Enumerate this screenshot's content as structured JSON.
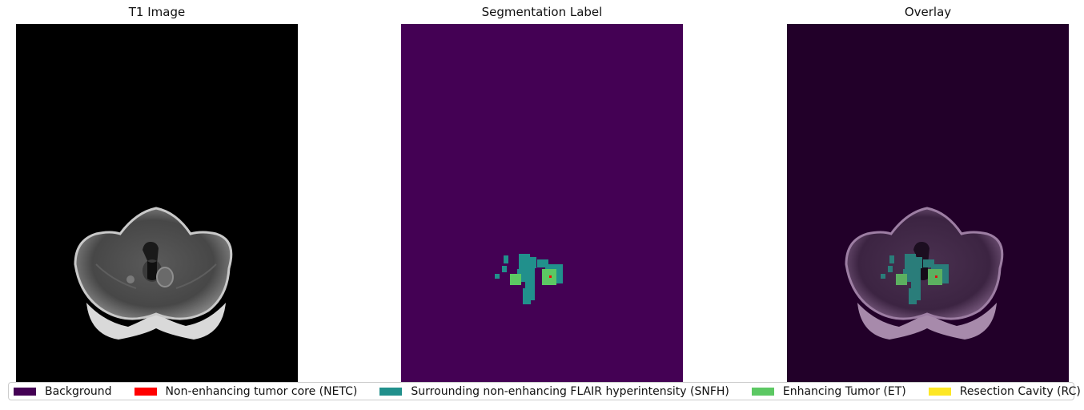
{
  "panels": [
    {
      "title": "T1 Image"
    },
    {
      "title": "Segmentation Label"
    },
    {
      "title": "Overlay"
    }
  ],
  "legend": [
    {
      "label": "Background",
      "color": "#440154"
    },
    {
      "label": "Non-enhancing tumor core (NETC)",
      "color": "#ff0000"
    },
    {
      "label": "Surrounding non-enhancing FLAIR hyperintensity (SNFH)",
      "color": "#21908c"
    },
    {
      "label": "Enhancing Tumor (ET)",
      "color": "#5cc863"
    },
    {
      "label": "Resection Cavity (RC)",
      "color": "#fde725"
    }
  ],
  "colors": {
    "t1_background": "#000000",
    "segmentation_background": "#440154",
    "overlay_background": "#220029"
  }
}
